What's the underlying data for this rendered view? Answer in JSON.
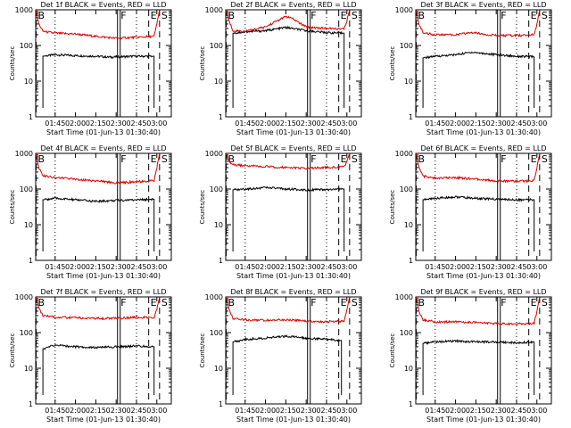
{
  "figure": {
    "xlabel": "Start Time (01-Jun-13 01:30:40)",
    "ylabel": "Counts/sec",
    "x_ticks": [
      "01:45",
      "02:00",
      "02:15",
      "02:30",
      "02:45",
      "03:00"
    ],
    "y_ticks": [
      "1",
      "10",
      "100",
      "1000"
    ]
  },
  "chart_data": [
    {
      "type": "line",
      "title": "Det 1f BLACK = Events, RED = LLD",
      "xlim": [
        "01:30:40",
        "03:10:40"
      ],
      "ylim": [
        1,
        1000
      ],
      "yscale": "log",
      "xlabel": "Start Time (01-Jun-13 01:30:40)",
      "ylabel": "Counts/sec",
      "series": [
        {
          "name": "Events",
          "color": "#000000",
          "x": [
            "01:36",
            "01:45",
            "02:00",
            "02:15",
            "02:25",
            "02:30",
            "02:45",
            "02:58"
          ],
          "y": [
            50,
            55,
            52,
            50,
            47,
            48,
            50,
            50
          ]
        },
        {
          "name": "LLD",
          "color": "#dd0000",
          "x": [
            "01:31",
            "01:33",
            "01:36",
            "01:45",
            "02:00",
            "02:15",
            "02:30",
            "02:45",
            "02:58",
            "03:00",
            "03:02"
          ],
          "y": [
            1000,
            400,
            250,
            220,
            210,
            180,
            160,
            170,
            180,
            400,
            1000
          ]
        }
      ],
      "markers": [
        {
          "label": "B",
          "time": "01:31"
        },
        {
          "label": "F",
          "time": "02:32"
        },
        {
          "label": "E",
          "time": "02:54"
        },
        {
          "label": "S",
          "time": "03:02"
        }
      ]
    },
    {
      "type": "line",
      "title": "Det 2f BLACK = Events, RED = LLD",
      "xlim": [
        "01:30:40",
        "03:10:40"
      ],
      "ylim": [
        1,
        1000
      ],
      "yscale": "log",
      "xlabel": "Start Time (01-Jun-13 01:30:40)",
      "ylabel": "Counts/sec",
      "series": [
        {
          "name": "Events",
          "color": "#000000",
          "x": [
            "01:36",
            "01:45",
            "02:00",
            "02:15",
            "02:30",
            "02:45",
            "02:58"
          ],
          "y": [
            220,
            240,
            260,
            320,
            260,
            230,
            220
          ]
        },
        {
          "name": "LLD",
          "color": "#dd0000",
          "x": [
            "01:31",
            "01:33",
            "01:36",
            "01:45",
            "02:00",
            "02:08",
            "02:15",
            "02:20",
            "02:30",
            "02:45",
            "02:58",
            "03:00",
            "03:02"
          ],
          "y": [
            1000,
            500,
            260,
            250,
            330,
            480,
            650,
            560,
            330,
            300,
            290,
            500,
            1000
          ]
        }
      ],
      "markers": [
        {
          "label": "B",
          "time": "01:31"
        },
        {
          "label": "F",
          "time": "02:32"
        },
        {
          "label": "E",
          "time": "02:54"
        },
        {
          "label": "S",
          "time": "03:02"
        }
      ]
    },
    {
      "type": "line",
      "title": "Det 3f BLACK = Events, RED = LLD",
      "xlim": [
        "01:30:40",
        "03:10:40"
      ],
      "ylim": [
        1,
        1000
      ],
      "yscale": "log",
      "xlabel": "Start Time (01-Jun-13 01:30:40)",
      "ylabel": "Counts/sec",
      "series": [
        {
          "name": "Events",
          "color": "#000000",
          "x": [
            "01:36",
            "01:45",
            "02:00",
            "02:12",
            "02:30",
            "02:45",
            "02:58"
          ],
          "y": [
            45,
            50,
            55,
            65,
            55,
            50,
            48
          ]
        },
        {
          "name": "LLD",
          "color": "#dd0000",
          "x": [
            "01:31",
            "01:33",
            "01:36",
            "01:45",
            "02:00",
            "02:12",
            "02:30",
            "02:45",
            "02:58",
            "03:00",
            "03:02"
          ],
          "y": [
            1000,
            400,
            230,
            200,
            200,
            230,
            190,
            190,
            200,
            400,
            1000
          ]
        }
      ],
      "markers": [
        {
          "label": "B",
          "time": "01:31"
        },
        {
          "label": "F",
          "time": "02:32"
        },
        {
          "label": "E",
          "time": "02:54"
        },
        {
          "label": "S",
          "time": "03:02"
        }
      ]
    },
    {
      "type": "line",
      "title": "Det 4f BLACK = Events, RED = LLD",
      "xlim": [
        "01:30:40",
        "03:10:40"
      ],
      "ylim": [
        1,
        1000
      ],
      "yscale": "log",
      "xlabel": "Start Time (01-Jun-13 01:30:40)",
      "ylabel": "Counts/sec",
      "series": [
        {
          "name": "Events",
          "color": "#000000",
          "x": [
            "01:36",
            "01:45",
            "02:00",
            "02:15",
            "02:30",
            "02:45",
            "02:58"
          ],
          "y": [
            50,
            55,
            50,
            45,
            48,
            50,
            52
          ]
        },
        {
          "name": "LLD",
          "color": "#dd0000",
          "x": [
            "01:31",
            "01:33",
            "01:36",
            "01:45",
            "02:00",
            "02:15",
            "02:30",
            "02:45",
            "02:58",
            "03:00",
            "03:02"
          ],
          "y": [
            1000,
            400,
            240,
            210,
            190,
            170,
            150,
            160,
            170,
            400,
            1000
          ]
        }
      ],
      "markers": [
        {
          "label": "B",
          "time": "01:31"
        },
        {
          "label": "F",
          "time": "02:32"
        },
        {
          "label": "E",
          "time": "02:54"
        },
        {
          "label": "S",
          "time": "03:02"
        }
      ]
    },
    {
      "type": "line",
      "title": "Det 5f BLACK = Events, RED = LLD",
      "xlim": [
        "01:30:40",
        "03:10:40"
      ],
      "ylim": [
        1,
        1000
      ],
      "yscale": "log",
      "xlabel": "Start Time (01-Jun-13 01:30:40)",
      "ylabel": "Counts/sec",
      "series": [
        {
          "name": "Events",
          "color": "#000000",
          "x": [
            "01:36",
            "01:45",
            "02:00",
            "02:15",
            "02:30",
            "02:45",
            "02:58"
          ],
          "y": [
            95,
            100,
            110,
            100,
            95,
            95,
            100
          ]
        },
        {
          "name": "LLD",
          "color": "#dd0000",
          "x": [
            "01:31",
            "01:33",
            "01:36",
            "01:45",
            "02:00",
            "02:15",
            "02:30",
            "02:45",
            "02:58",
            "03:00",
            "03:02"
          ],
          "y": [
            1000,
            600,
            480,
            450,
            430,
            400,
            380,
            400,
            420,
            600,
            1000
          ]
        }
      ],
      "markers": [
        {
          "label": "B",
          "time": "01:31"
        },
        {
          "label": "F",
          "time": "02:32"
        },
        {
          "label": "E",
          "time": "02:54"
        },
        {
          "label": "S",
          "time": "03:02"
        }
      ]
    },
    {
      "type": "line",
      "title": "Det 6f BLACK = Events, RED = LLD",
      "xlim": [
        "01:30:40",
        "03:10:40"
      ],
      "ylim": [
        1,
        1000
      ],
      "yscale": "log",
      "xlabel": "Start Time (01-Jun-13 01:30:40)",
      "ylabel": "Counts/sec",
      "series": [
        {
          "name": "Events",
          "color": "#000000",
          "x": [
            "01:36",
            "01:45",
            "02:00",
            "02:15",
            "02:30",
            "02:45",
            "02:58"
          ],
          "y": [
            50,
            55,
            60,
            55,
            52,
            50,
            50
          ]
        },
        {
          "name": "LLD",
          "color": "#dd0000",
          "x": [
            "01:31",
            "01:33",
            "01:36",
            "01:45",
            "02:00",
            "02:15",
            "02:30",
            "02:45",
            "02:58",
            "03:00",
            "03:02"
          ],
          "y": [
            1000,
            400,
            230,
            200,
            210,
            190,
            170,
            165,
            170,
            400,
            1000
          ]
        }
      ],
      "markers": [
        {
          "label": "B",
          "time": "01:31"
        },
        {
          "label": "F",
          "time": "02:32"
        },
        {
          "label": "E",
          "time": "02:54"
        },
        {
          "label": "S",
          "time": "03:02"
        }
      ]
    },
    {
      "type": "line",
      "title": "Det 7f BLACK = Events, RED = LLD",
      "xlim": [
        "01:30:40",
        "03:10:40"
      ],
      "ylim": [
        1,
        1000
      ],
      "yscale": "log",
      "xlabel": "Start Time (01-Jun-13 01:30:40)",
      "ylabel": "Counts/sec",
      "series": [
        {
          "name": "Events",
          "color": "#000000",
          "x": [
            "01:36",
            "01:45",
            "02:00",
            "02:15",
            "02:30",
            "02:45",
            "02:58"
          ],
          "y": [
            35,
            45,
            40,
            38,
            40,
            42,
            40
          ]
        },
        {
          "name": "LLD",
          "color": "#dd0000",
          "x": [
            "01:31",
            "01:33",
            "01:36",
            "01:45",
            "02:00",
            "02:15",
            "02:30",
            "02:45",
            "02:58",
            "03:00",
            "03:02"
          ],
          "y": [
            1000,
            500,
            300,
            270,
            260,
            250,
            250,
            270,
            260,
            450,
            1000
          ]
        }
      ],
      "markers": [
        {
          "label": "B",
          "time": "01:31"
        },
        {
          "label": "F",
          "time": "02:32"
        },
        {
          "label": "E",
          "time": "02:54"
        },
        {
          "label": "S",
          "time": "03:02"
        }
      ]
    },
    {
      "type": "line",
      "title": "Det 8f BLACK = Events, RED = LLD",
      "xlim": [
        "01:30:40",
        "03:10:40"
      ],
      "ylim": [
        1,
        1000
      ],
      "yscale": "log",
      "xlabel": "Start Time (01-Jun-13 01:30:40)",
      "ylabel": "Counts/sec",
      "series": [
        {
          "name": "Events",
          "color": "#000000",
          "x": [
            "01:36",
            "01:45",
            "02:00",
            "02:15",
            "02:30",
            "02:45",
            "02:56"
          ],
          "y": [
            55,
            65,
            70,
            80,
            70,
            65,
            60
          ]
        },
        {
          "name": "LLD",
          "color": "#dd0000",
          "x": [
            "01:31",
            "01:33",
            "01:36",
            "01:45",
            "02:00",
            "02:15",
            "02:30",
            "02:45",
            "02:58",
            "03:00",
            "03:02"
          ],
          "y": [
            1000,
            450,
            250,
            230,
            220,
            230,
            210,
            200,
            210,
            450,
            1000
          ]
        }
      ],
      "markers": [
        {
          "label": "B",
          "time": "01:31"
        },
        {
          "label": "F",
          "time": "02:32"
        },
        {
          "label": "E",
          "time": "02:54"
        },
        {
          "label": "S",
          "time": "03:02"
        }
      ]
    },
    {
      "type": "line",
      "title": "Det 9f BLACK = Events, RED = LLD",
      "xlim": [
        "01:30:40",
        "03:10:40"
      ],
      "ylim": [
        1,
        1000
      ],
      "yscale": "log",
      "xlabel": "Start Time (01-Jun-13 01:30:40)",
      "ylabel": "Counts/sec",
      "series": [
        {
          "name": "Events",
          "color": "#000000",
          "x": [
            "01:36",
            "01:45",
            "02:00",
            "02:15",
            "02:30",
            "02:45",
            "02:58"
          ],
          "y": [
            50,
            55,
            58,
            55,
            55,
            52,
            55
          ]
        },
        {
          "name": "LLD",
          "color": "#dd0000",
          "x": [
            "01:31",
            "01:33",
            "01:36",
            "01:45",
            "02:00",
            "02:15",
            "02:30",
            "02:45",
            "02:58",
            "03:00",
            "03:02"
          ],
          "y": [
            1000,
            400,
            230,
            200,
            200,
            195,
            180,
            175,
            180,
            400,
            1000
          ]
        }
      ],
      "markers": [
        {
          "label": "B",
          "time": "01:31"
        },
        {
          "label": "F",
          "time": "02:32"
        },
        {
          "label": "E",
          "time": "02:54"
        },
        {
          "label": "S",
          "time": "03:02"
        }
      ]
    }
  ]
}
